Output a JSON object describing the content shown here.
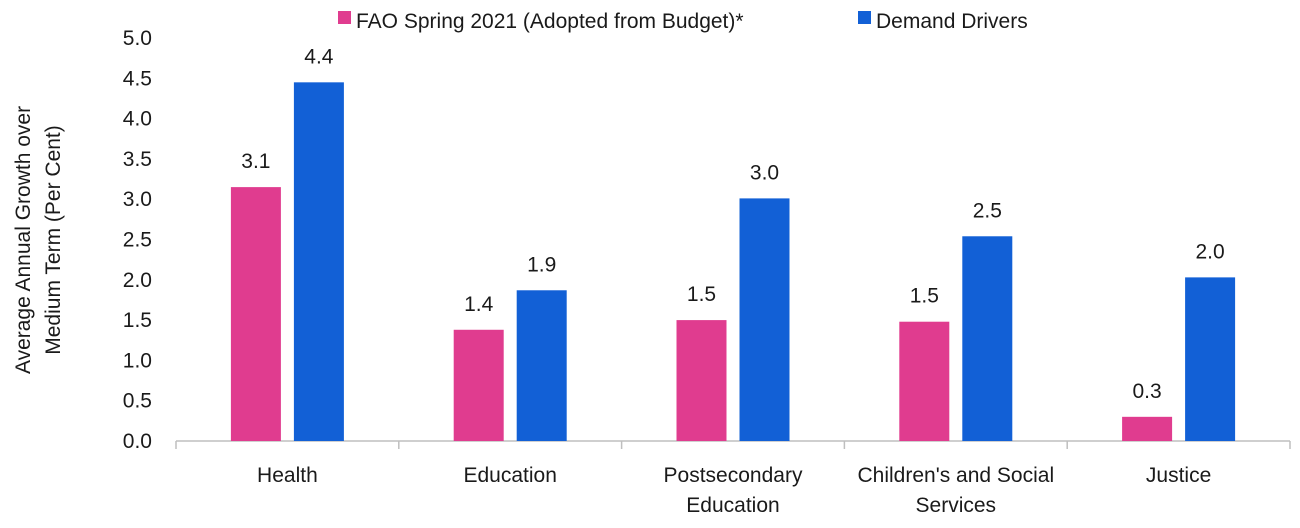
{
  "chart_data": {
    "type": "bar",
    "categories": [
      [
        "Health"
      ],
      [
        "Education"
      ],
      [
        "Postsecondary",
        "Education"
      ],
      [
        "Children's and Social",
        "Services"
      ],
      [
        "Justice"
      ]
    ],
    "series": [
      {
        "name": "FAO Spring 2021 (Adopted from Budget)*",
        "color": "#e03c8f",
        "values": [
          3.15,
          1.38,
          1.5,
          1.48,
          0.3
        ],
        "labels": [
          "3.1",
          "1.4",
          "1.5",
          "1.5",
          "0.3"
        ]
      },
      {
        "name": "Demand Drivers",
        "color": "#1260d6",
        "values": [
          4.45,
          1.87,
          3.01,
          2.54,
          2.03
        ],
        "labels": [
          "4.4",
          "1.9",
          "3.0",
          "2.5",
          "2.0"
        ]
      }
    ],
    "ylabel": [
      "Average Annual Growth over",
      "Medium Term (Per Cent)"
    ],
    "xlabel": "",
    "ylim": [
      0,
      5
    ],
    "yticks": [
      "0.0",
      "0.5",
      "1.0",
      "1.5",
      "2.0",
      "2.5",
      "3.0",
      "3.5",
      "4.0",
      "4.5",
      "5.0"
    ],
    "grid": false,
    "legend_position": "top-center"
  }
}
